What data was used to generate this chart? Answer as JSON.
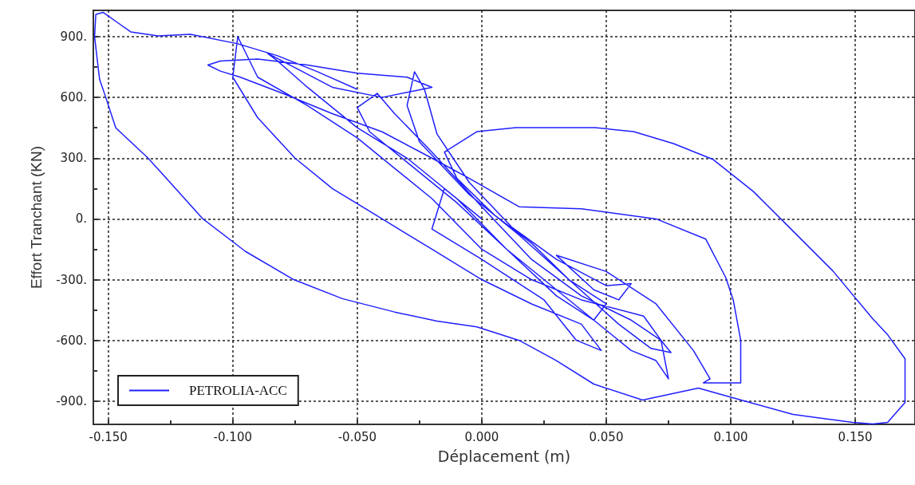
{
  "chart_data": {
    "type": "line",
    "xlabel": "Déplacement (m)",
    "ylabel": "Effort Tranchant (KN)",
    "xlim": [
      -0.156,
      0.174
    ],
    "ylim": [
      -1015,
      1030
    ],
    "xticks": [
      {
        "value": -0.15,
        "label": "-0.150"
      },
      {
        "value": -0.125,
        "label": null
      },
      {
        "value": -0.1,
        "label": "-0.100"
      },
      {
        "value": -0.075,
        "label": null
      },
      {
        "value": -0.05,
        "label": "-0.050"
      },
      {
        "value": -0.025,
        "label": null
      },
      {
        "value": 0,
        "label": "0.000"
      },
      {
        "value": 0.025,
        "label": null
      },
      {
        "value": 0.05,
        "label": "0.050"
      },
      {
        "value": 0.075,
        "label": null
      },
      {
        "value": 0.1,
        "label": "0.100"
      },
      {
        "value": 0.125,
        "label": null
      },
      {
        "value": 0.15,
        "label": "0.150"
      }
    ],
    "yticks": [
      {
        "value": -900,
        "label": "-900."
      },
      {
        "value": -750,
        "label": null
      },
      {
        "value": -600,
        "label": "-600."
      },
      {
        "value": -450,
        "label": null
      },
      {
        "value": -300,
        "label": "-300."
      },
      {
        "value": -150,
        "label": null
      },
      {
        "value": 0,
        "label": "0."
      },
      {
        "value": 150,
        "label": null
      },
      {
        "value": 300,
        "label": "300."
      },
      {
        "value": 450,
        "label": null
      },
      {
        "value": 600,
        "label": "600."
      },
      {
        "value": 750,
        "label": null
      },
      {
        "value": 900,
        "label": "900."
      }
    ],
    "grid": true,
    "legend": "bottom left",
    "marker": "none",
    "line_style": "solid",
    "series": [
      {
        "name": "PETROLIA-ACC",
        "color": "#1f1fff",
        "x": [
          -0.05,
          -0.066,
          -0.082,
          -0.098,
          -0.117,
          -0.13,
          -0.141,
          -0.1455,
          -0.152,
          -0.155,
          -0.1555,
          -0.1535,
          -0.151,
          -0.147,
          -0.134,
          -0.123,
          -0.112,
          -0.095,
          -0.0755,
          -0.056,
          -0.035,
          -0.018,
          -0.002,
          0.015,
          0.03,
          0.045,
          0.0646,
          0.087,
          0.0987,
          0.125,
          0.149,
          0.157,
          0.163,
          0.17,
          0.17,
          0.163,
          0.157,
          0.141,
          0.125,
          0.109,
          0.093,
          0.077,
          0.061,
          0.0455,
          0.0137,
          -0.002,
          -0.015,
          -0.01,
          0.005,
          0.02,
          0.035,
          0.05,
          0.045,
          0.03,
          0.01,
          -0.01,
          -0.03,
          -0.045,
          -0.05,
          -0.042,
          -0.035,
          -0.02,
          0.0,
          0.02,
          0.04,
          0.06,
          0.072,
          0.076,
          0.068,
          0.055,
          0.035,
          0.015,
          -0.005,
          -0.025,
          -0.03,
          -0.027,
          -0.023,
          -0.018,
          -0.005,
          0.012,
          0.03,
          0.05,
          0.06,
          0.055,
          0.045,
          0.03,
          0.05,
          0.07,
          0.085,
          0.0917,
          0.089,
          0.104,
          0.104,
          0.101,
          0.098,
          0.09,
          0.07,
          0.04,
          0.015,
          -0.005,
          -0.02,
          -0.04,
          -0.06,
          -0.08,
          -0.097,
          -0.105,
          -0.11,
          -0.105,
          -0.09,
          -0.07,
          -0.05,
          -0.03,
          -0.02,
          -0.04,
          -0.06,
          -0.086,
          -0.082,
          -0.07,
          -0.05,
          -0.03,
          -0.01,
          0.01,
          0.03,
          0.05,
          0.06,
          0.07,
          0.075,
          0.072,
          0.065,
          0.04,
          0.02,
          0.0,
          -0.02,
          -0.05,
          -0.07,
          -0.09,
          -0.098,
          -0.1,
          -0.09,
          -0.075,
          -0.06,
          -0.04,
          -0.02,
          0.0,
          0.02,
          0.04,
          0.048,
          0.038,
          0.025,
          0.0,
          -0.02,
          -0.015,
          0.0
        ],
        "values": [
          640,
          727,
          806,
          865,
          912,
          904,
          924,
          963,
          1020,
          1010,
          900,
          690,
          600,
          450,
          300,
          150,
          0,
          -160,
          -300,
          -394,
          -460,
          -505,
          -533,
          -600,
          -700,
          -816,
          -895,
          -836,
          -876,
          -966,
          -1005,
          -1013,
          -1005,
          -907,
          -691,
          -572,
          -493,
          -257,
          -60,
          136,
          293,
          372,
          431,
          451,
          451,
          431,
          330,
          200,
          20,
          -120,
          -300,
          -420,
          -500,
          -380,
          -150,
          80,
          280,
          430,
          550,
          620,
          520,
          330,
          60,
          -200,
          -380,
          -500,
          -600,
          -660,
          -640,
          -520,
          -300,
          -80,
          120,
          380,
          560,
          727,
          640,
          420,
          180,
          -40,
          -200,
          -330,
          -320,
          -400,
          -350,
          -180,
          -260,
          -420,
          -650,
          -790,
          -810,
          -810,
          -600,
          -400,
          -290,
          -100,
          0,
          50,
          60,
          200,
          300,
          430,
          520,
          620,
          700,
          730,
          760,
          780,
          790,
          760,
          720,
          700,
          650,
          600,
          650,
          818,
          780,
          650,
          450,
          300,
          100,
          -150,
          -350,
          -550,
          -650,
          -700,
          -790,
          -600,
          -480,
          -400,
          -300,
          -150,
          100,
          400,
          560,
          700,
          900,
          700,
          500,
          300,
          150,
          0,
          -150,
          -300,
          -420,
          -520,
          -650,
          -600,
          -400,
          -200,
          -50,
          150,
          0
        ]
      }
    ]
  }
}
